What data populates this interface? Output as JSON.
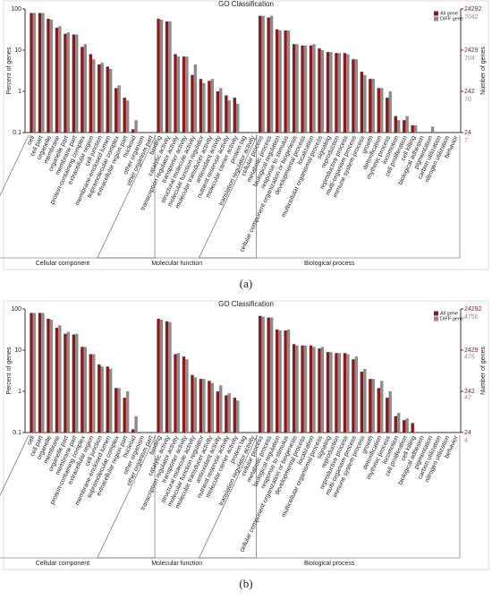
{
  "chart_data": [
    {
      "type": "bar",
      "panel_label": "(a)",
      "title": "GO Classification",
      "y_label": "Percent of genes",
      "y2_label": "Number of genes",
      "log_y": true,
      "ylim": [
        0.1,
        100
      ],
      "yticks": [
        0.1,
        1,
        10,
        100
      ],
      "y2lim": [
        24,
        24292
      ],
      "y2ticks": [
        24,
        242,
        2429,
        24292
      ],
      "y2color": "#8b1a1a",
      "y3lim": [
        7,
        7042
      ],
      "y3ticks": [
        7,
        70,
        704,
        7042
      ],
      "y3color": "#8c8c8c",
      "legend": "top-right",
      "groups": [
        {
          "name": "Cellular component",
          "categories": [
            "cell",
            "cell part",
            "organelle",
            "membrane",
            "organelle part",
            "membrane part",
            "protein-containing complex",
            "extracellular region",
            "cell junction",
            "membrane-enclosed lumen",
            "supramolecular complex",
            "extracellular region part",
            "nucleoid",
            "other organism",
            "other organism part"
          ]
        },
        {
          "name": "Molecular function",
          "categories": [
            "binding",
            "catalytic activity",
            "transcription regulator activity",
            "transporter activity",
            "structural molecule activity",
            "molecular function regulator",
            "molecular transducer activity",
            "antioxidant activity",
            "nutrient reservoir activity",
            "molecular carrier activity",
            "protein tag",
            "translation regulator activity"
          ]
        },
        {
          "name": "Biological process",
          "categories": [
            "cellular process",
            "metabolic process",
            "biological regulation",
            "response to stimulus",
            "cellular component organization or biogenesis",
            "developmental process",
            "localization",
            "multicellular organismal process",
            "signaling",
            "reproduction",
            "reproductive process",
            "multi-organism process",
            "immune system process",
            "growth",
            "detoxification",
            "rhythmic process",
            "locomotion",
            "cell proliferation",
            "cell killing",
            "biological adhesion",
            "pigmentation",
            "carbon utilization",
            "nitrogen utilization",
            "behavior"
          ]
        }
      ],
      "series": [
        {
          "name": "All gene",
          "color": "#8b1a1a",
          "values": [
            80,
            80,
            58,
            35,
            25,
            24,
            12,
            8,
            4.5,
            4,
            1.2,
            0.7,
            0.12,
            null,
            null,
            58,
            50,
            8,
            7,
            2.5,
            2,
            1.8,
            1,
            0.8,
            0.7,
            null,
            null,
            68,
            62,
            32,
            30,
            14,
            13,
            13,
            11,
            9,
            8.5,
            8.5,
            6,
            3,
            2,
            1.2,
            0.7,
            0.25,
            0.2,
            0.15,
            null,
            null,
            null,
            null,
            null
          ]
        },
        {
          "name": "DIFF gene",
          "color": "#8c8c8c",
          "values": [
            80,
            80,
            55,
            38,
            27,
            24,
            14,
            6,
            5,
            3.5,
            1.4,
            0.6,
            0.2,
            null,
            null,
            55,
            50,
            7,
            7,
            4.5,
            1.6,
            2,
            1.2,
            0.6,
            0.5,
            null,
            null,
            68,
            68,
            30,
            30,
            14,
            13,
            14,
            10,
            9,
            8.5,
            8,
            6,
            2.5,
            2,
            1.2,
            1,
            0.2,
            0.25,
            0.15,
            null,
            0.14,
            null,
            null,
            null
          ]
        }
      ]
    },
    {
      "type": "bar",
      "panel_label": "(b)",
      "title": "GO Classification",
      "y_label": "Percent of genes",
      "y2_label": "Number of genes",
      "log_y": true,
      "ylim": [
        0.1,
        100
      ],
      "yticks": [
        0.1,
        1,
        10,
        100
      ],
      "y2lim": [
        24,
        24292
      ],
      "y2ticks": [
        24,
        242,
        2429,
        24292
      ],
      "y2color": "#8b1a1a",
      "y3lim": [
        4,
        4750
      ],
      "y3ticks": [
        4,
        47,
        475,
        4750
      ],
      "y3color": "#8c8c8c",
      "legend": "top-right",
      "groups": [
        {
          "name": "Cellular component",
          "categories": [
            "cell",
            "cell part",
            "organelle",
            "membrane",
            "organelle part",
            "membrane part",
            "protein-containing complex",
            "extracellular region",
            "cell junction",
            "membrane-enclosed lumen",
            "supramolecular complex",
            "extracellular region part",
            "nucleoid",
            "other organism",
            "other organism part"
          ]
        },
        {
          "name": "Molecular function",
          "categories": [
            "binding",
            "catalytic activity",
            "transcription regulator activity",
            "transporter activity",
            "structural molecule activity",
            "molecular function regulator",
            "molecular transducer activity",
            "antioxidant activity",
            "nutrient reservoir activity",
            "molecular carrier activity",
            "protein tag",
            "translation regulator activity"
          ]
        },
        {
          "name": "Biological process",
          "categories": [
            "cellular process",
            "metabolic process",
            "biological regulation",
            "response to stimulus",
            "cellular component organization or biogenesis",
            "developmental process",
            "localization",
            "multicellular organismal process",
            "signaling",
            "reproduction",
            "reproductive process",
            "multi-organism process",
            "immune system process",
            "growth",
            "detoxification",
            "rhythmic process",
            "locomotion",
            "cell proliferation",
            "cell killing",
            "biological adhesion",
            "pigmentation",
            "carbon utilization",
            "nitrogen utilization",
            "behavior"
          ]
        }
      ],
      "series": [
        {
          "name": "All gene",
          "color": "#8b1a1a",
          "values": [
            80,
            80,
            58,
            35,
            25,
            24,
            12,
            8,
            4.5,
            4,
            1.2,
            0.7,
            0.12,
            null,
            null,
            58,
            50,
            8,
            7,
            2.5,
            2,
            1.8,
            1,
            0.8,
            0.7,
            null,
            null,
            68,
            62,
            32,
            30,
            14,
            13,
            13,
            11,
            9,
            8.5,
            8.5,
            6,
            3,
            2,
            1.2,
            0.7,
            0.25,
            0.2,
            0.17,
            null,
            null,
            null,
            null,
            null
          ]
        },
        {
          "name": "DIFF gene",
          "color": "#8c8c8c",
          "values": [
            80,
            80,
            55,
            40,
            28,
            25,
            12,
            8,
            4,
            3.5,
            1.2,
            1,
            0.25,
            null,
            null,
            55,
            48,
            8.5,
            6,
            2.2,
            2,
            1.6,
            1.4,
            0.9,
            0.6,
            null,
            null,
            65,
            62,
            30,
            32,
            13,
            13,
            12,
            12,
            9,
            8.5,
            8,
            7,
            3.5,
            2,
            1.8,
            1,
            0.3,
            0.22,
            null,
            null,
            null,
            null,
            null,
            null
          ]
        }
      ]
    }
  ]
}
